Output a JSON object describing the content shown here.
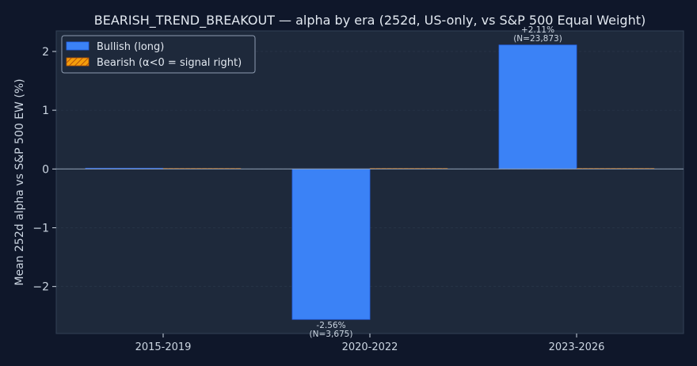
{
  "colors": {
    "figure_bg": "#0f172a",
    "plot_bg": "#1e293b",
    "text": "#e2e8f0",
    "tick_text": "#cbd5e1",
    "bullish": "#3b82f6",
    "bearish": "#f59e0b",
    "zero_line": "#94a3b8",
    "grid": "#334155"
  },
  "chart_data": {
    "type": "bar",
    "title": "BEARISH_TREND_BREAKOUT — alpha by era (252d, US-only, vs S&P 500 Equal Weight)",
    "xlabel": "",
    "ylabel": "Mean 252d alpha vs S&P 500 EW (%)",
    "categories": [
      "2015-2019",
      "2020-2022",
      "2023-2026"
    ],
    "ylim": [
      -2.8,
      2.35
    ],
    "yticks": [
      -2,
      -1,
      0,
      1,
      2
    ],
    "ytick_labels": [
      "−2",
      "−1",
      "0",
      "1",
      "2"
    ],
    "grid": true,
    "legend_position": "top-left",
    "series": [
      {
        "name": "Bullish (long)",
        "color": "#3b82f6",
        "pattern": "solid",
        "values": [
          0,
          -2.56,
          2.11
        ],
        "labels": [
          "",
          "-2.56%\n(N=3,675)",
          "+2.11%\n(N=23,873)"
        ]
      },
      {
        "name": "Bearish (α<0 = signal right)",
        "color": "#f59e0b",
        "pattern": "hatched",
        "values": [
          0,
          0,
          0
        ],
        "labels": [
          "",
          "",
          ""
        ]
      }
    ]
  }
}
